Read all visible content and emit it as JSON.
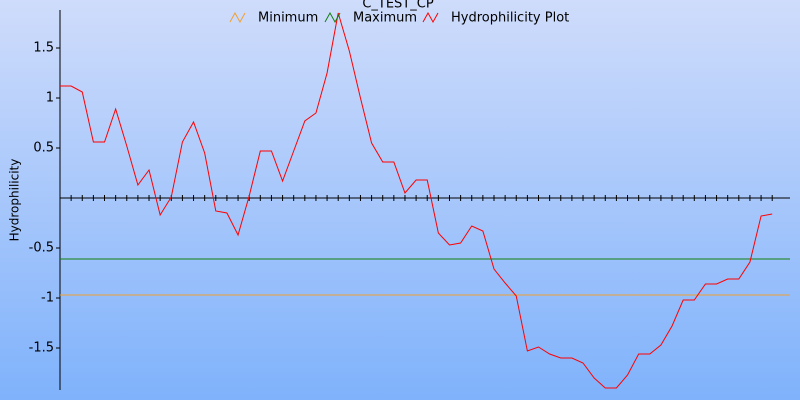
{
  "chart_data": {
    "type": "line",
    "title": "C_TEST_CP",
    "y_label": "Hydrophilicity",
    "ylim": [
      -1.92,
      1.88
    ],
    "yticks": [
      1.5,
      1,
      0.5,
      -0.5,
      -1,
      -1.5
    ],
    "thresholds": [
      {
        "name": "Minimum",
        "color": "#f0a030",
        "value": -0.97
      },
      {
        "name": "Maximum",
        "color": "#108010",
        "value": -0.61
      }
    ],
    "series": [
      {
        "name": "Hydrophilicity Plot",
        "color": "#ff0000",
        "values": [
          1.12,
          1.12,
          1.06,
          0.56,
          0.56,
          0.89,
          0.52,
          0.13,
          0.28,
          -0.17,
          0.01,
          0.56,
          0.76,
          0.45,
          -0.13,
          -0.15,
          -0.37,
          0.02,
          0.47,
          0.47,
          0.17,
          0.47,
          0.77,
          0.85,
          1.25,
          1.85,
          1.47,
          1.0,
          0.55,
          0.36,
          0.36,
          0.05,
          0.18,
          0.18,
          -0.35,
          -0.47,
          -0.45,
          -0.28,
          -0.33,
          -0.71,
          -0.85,
          -0.98,
          -1.53,
          -1.49,
          -1.56,
          -1.6,
          -1.6,
          -1.65,
          -1.8,
          -1.9,
          -1.9,
          -1.77,
          -1.56,
          -1.56,
          -1.47,
          -1.28,
          -1.02,
          -1.02,
          -0.86,
          -0.86,
          -0.81,
          -0.81,
          -0.64,
          -0.18,
          -0.16
        ]
      }
    ]
  }
}
